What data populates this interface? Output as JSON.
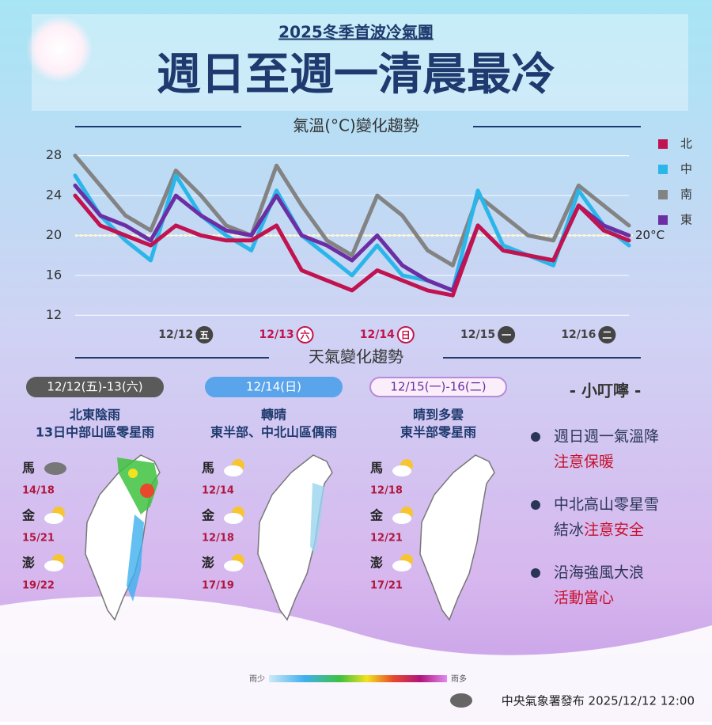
{
  "header": {
    "subtitle": "2025冬季首波冷氣團",
    "title": "週日至週一清晨最冷"
  },
  "chart_data": {
    "type": "line",
    "title": "氣溫(°C)變化趨勢",
    "categories": [
      null,
      null,
      null,
      null,
      "12/12",
      null,
      null,
      null,
      "12/13",
      null,
      null,
      null,
      "12/14",
      null,
      null,
      null,
      "12/15",
      null,
      null,
      null,
      "12/16",
      null,
      null
    ],
    "x_day_labels": [
      null,
      null,
      null,
      null,
      "五",
      null,
      null,
      null,
      "六",
      null,
      null,
      null,
      "日",
      null,
      null,
      null,
      "一",
      null,
      null,
      null,
      "二",
      null,
      null
    ],
    "x_day_colors": [
      null,
      null,
      null,
      null,
      "#444444",
      null,
      null,
      null,
      "#c0134f",
      null,
      null,
      null,
      "#c0134f",
      null,
      null,
      null,
      "#444444",
      null,
      null,
      null,
      "#444444",
      null,
      null
    ],
    "series": [
      {
        "name": "北",
        "color": "#c0134f",
        "values": [
          24,
          21,
          20,
          19,
          21,
          20,
          19.5,
          19.5,
          21,
          16.5,
          15.5,
          14.5,
          16.5,
          15.5,
          14.5,
          14,
          21,
          18.5,
          18,
          17.5,
          23,
          20.5,
          19.5
        ]
      },
      {
        "name": "中",
        "color": "#2bb6ea",
        "values": [
          26,
          22,
          19.5,
          17.5,
          26,
          22,
          20,
          18.5,
          24.5,
          20,
          18,
          16,
          19,
          16,
          15.5,
          14.5,
          24.5,
          19,
          18,
          17,
          24.5,
          21,
          19
        ]
      },
      {
        "name": "南",
        "color": "#838383",
        "values": [
          28,
          25,
          22,
          20.5,
          26.5,
          24,
          21,
          20,
          27,
          23,
          19.5,
          18,
          24,
          22,
          18.5,
          17,
          24,
          22,
          20,
          19.5,
          25,
          23,
          21
        ]
      },
      {
        "name": "東",
        "color": "#6b2fa3",
        "values": [
          25,
          22,
          21,
          19.5,
          24,
          22,
          20.5,
          20,
          24,
          20,
          19,
          17.5,
          20,
          17,
          15.5,
          14.5,
          21,
          18.5,
          18,
          17.5,
          23,
          21,
          20
        ]
      }
    ],
    "ylim": [
      11,
      29
    ],
    "yticks": [
      12,
      16,
      20,
      24,
      28
    ],
    "grid": true,
    "reference_line": {
      "value": 20,
      "label": "20°C"
    },
    "legend": "right"
  },
  "weather": {
    "title": "天氣變化趨勢",
    "panels": [
      {
        "date": "12/12(五)-13(六)",
        "lines": [
          "北東陰雨",
          "13日中部山區零星雨"
        ],
        "islands": [
          {
            "name": "馬",
            "temp": "14/18"
          },
          {
            "name": "金",
            "temp": "15/21"
          },
          {
            "name": "澎",
            "temp": "19/22"
          }
        ]
      },
      {
        "date": "12/14(日)",
        "lines": [
          "轉晴",
          "東半部、中北山區偶雨"
        ],
        "islands": [
          {
            "name": "馬",
            "temp": "12/14"
          },
          {
            "name": "金",
            "temp": "12/18"
          },
          {
            "name": "澎",
            "temp": "17/19"
          }
        ]
      },
      {
        "date": "12/15(一)-16(二)",
        "lines": [
          "晴到多雲",
          "東半部零星雨"
        ],
        "islands": [
          {
            "name": "馬",
            "temp": "12/18"
          },
          {
            "name": "金",
            "temp": "12/21"
          },
          {
            "name": "澎",
            "temp": "17/21"
          }
        ]
      }
    ]
  },
  "tips": {
    "title": "- 小叮嚀 -",
    "items": [
      {
        "text": "週日週一氣溫降",
        "text2": "",
        "alert": "注意保暖"
      },
      {
        "text": "中北高山零星雪",
        "text2": "結冰",
        "alert": "注意安全"
      },
      {
        "text": "沿海強風大浪",
        "text2": "",
        "alert": "活動當心"
      }
    ]
  },
  "rain_legend": {
    "low": "雨少",
    "high": "雨多"
  },
  "footer": "中央氣象署發布 2025/12/12 12:00"
}
